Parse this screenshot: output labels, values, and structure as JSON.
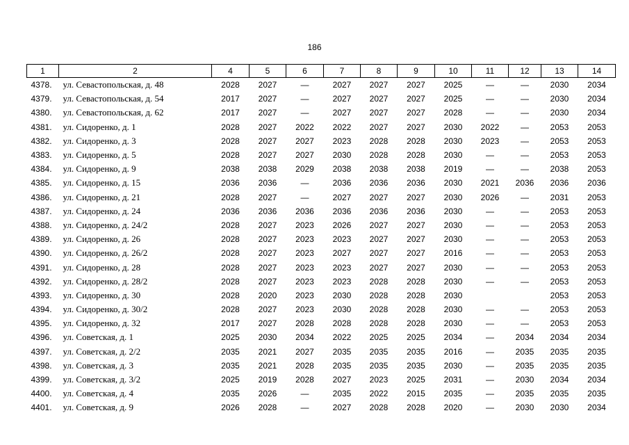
{
  "page_number": "186",
  "table": {
    "header": [
      "1",
      "2",
      "4",
      "5",
      "6",
      "7",
      "8",
      "9",
      "10",
      "11",
      "12",
      "13",
      "14"
    ],
    "rows": [
      [
        "4378.",
        "ул. Севастопольская, д. 48",
        2028,
        2027,
        "—",
        2027,
        2027,
        2027,
        2025,
        "—",
        "—",
        2030,
        2034
      ],
      [
        "4379.",
        "ул. Севастопольская, д. 54",
        2017,
        2027,
        "—",
        2027,
        2027,
        2027,
        2025,
        "—",
        "—",
        2030,
        2034
      ],
      [
        "4380.",
        "ул. Севастопольская, д. 62",
        2017,
        2027,
        "—",
        2027,
        2027,
        2027,
        2028,
        "—",
        "—",
        2030,
        2034
      ],
      [
        "4381.",
        "ул. Сидоренко, д. 1",
        2028,
        2027,
        2022,
        2022,
        2027,
        2027,
        2030,
        2022,
        "—",
        2053,
        2053
      ],
      [
        "4382.",
        "ул. Сидоренко, д. 3",
        2028,
        2027,
        2027,
        2023,
        2028,
        2028,
        2030,
        2023,
        "—",
        2053,
        2053
      ],
      [
        "4383.",
        "ул. Сидоренко, д. 5",
        2028,
        2027,
        2027,
        2030,
        2028,
        2028,
        2030,
        "—",
        "—",
        2053,
        2053
      ],
      [
        "4384.",
        "ул. Сидоренко, д. 9",
        2038,
        2038,
        2029,
        2038,
        2038,
        2038,
        2019,
        "—",
        "—",
        2038,
        2053
      ],
      [
        "4385.",
        "ул. Сидоренко, д. 15",
        2036,
        2036,
        "—",
        2036,
        2036,
        2036,
        2030,
        2021,
        2036,
        2036,
        2036
      ],
      [
        "4386.",
        "ул. Сидоренко, д. 21",
        2028,
        2027,
        "—",
        2027,
        2027,
        2027,
        2030,
        2026,
        "—",
        2031,
        2053
      ],
      [
        "4387.",
        "ул. Сидоренко, д. 24",
        2036,
        2036,
        2036,
        2036,
        2036,
        2036,
        2030,
        "—",
        "—",
        2053,
        2053
      ],
      [
        "4388.",
        "ул. Сидоренко, д. 24/2",
        2028,
        2027,
        2023,
        2026,
        2027,
        2027,
        2030,
        "—",
        "—",
        2053,
        2053
      ],
      [
        "4389.",
        "ул. Сидоренко, д. 26",
        2028,
        2027,
        2023,
        2023,
        2027,
        2027,
        2030,
        "—",
        "—",
        2053,
        2053
      ],
      [
        "4390.",
        "ул. Сидоренко, д. 26/2",
        2028,
        2027,
        2023,
        2027,
        2027,
        2027,
        2016,
        "—",
        "—",
        2053,
        2053
      ],
      [
        "4391.",
        "ул. Сидоренко, д. 28",
        2028,
        2027,
        2023,
        2023,
        2027,
        2027,
        2030,
        "—",
        "—",
        2053,
        2053
      ],
      [
        "4392.",
        "ул. Сидоренко, д. 28/2",
        2028,
        2027,
        2023,
        2023,
        2028,
        2028,
        2030,
        "—",
        "—",
        2053,
        2053
      ],
      [
        "4393.",
        "ул. Сидоренко, д. 30",
        2028,
        2020,
        2023,
        2030,
        2028,
        2028,
        2030,
        null,
        null,
        2053,
        2053
      ],
      [
        "4394.",
        "ул. Сидоренко, д. 30/2",
        2028,
        2027,
        2023,
        2030,
        2028,
        2028,
        2030,
        "—",
        "—",
        2053,
        2053
      ],
      [
        "4395.",
        "ул. Сидоренко, д. 32",
        2017,
        2027,
        2028,
        2028,
        2028,
        2028,
        2030,
        "—",
        "—",
        2053,
        2053
      ],
      [
        "4396.",
        "ул. Советская, д. 1",
        2025,
        2030,
        2034,
        2022,
        2025,
        2025,
        2034,
        "—",
        2034,
        2034,
        2034
      ],
      [
        "4397.",
        "ул. Советская, д. 2/2",
        2035,
        2021,
        2027,
        2035,
        2035,
        2035,
        2016,
        "—",
        2035,
        2035,
        2035
      ],
      [
        "4398.",
        "ул. Советская, д. 3",
        2035,
        2021,
        2028,
        2035,
        2035,
        2035,
        2030,
        "—",
        2035,
        2035,
        2035
      ],
      [
        "4399.",
        "ул. Советская, д. 3/2",
        2025,
        2019,
        2028,
        2027,
        2023,
        2025,
        2031,
        "—",
        2030,
        2034,
        2034
      ],
      [
        "4400.",
        "ул. Советская, д. 4",
        2035,
        2026,
        "—",
        2035,
        2022,
        2015,
        2035,
        "—",
        2035,
        2035,
        2035
      ],
      [
        "4401.",
        "ул. Советская, д. 9",
        2026,
        2028,
        "—",
        2027,
        2028,
        2028,
        2020,
        "—",
        2030,
        2030,
        2034
      ]
    ]
  }
}
